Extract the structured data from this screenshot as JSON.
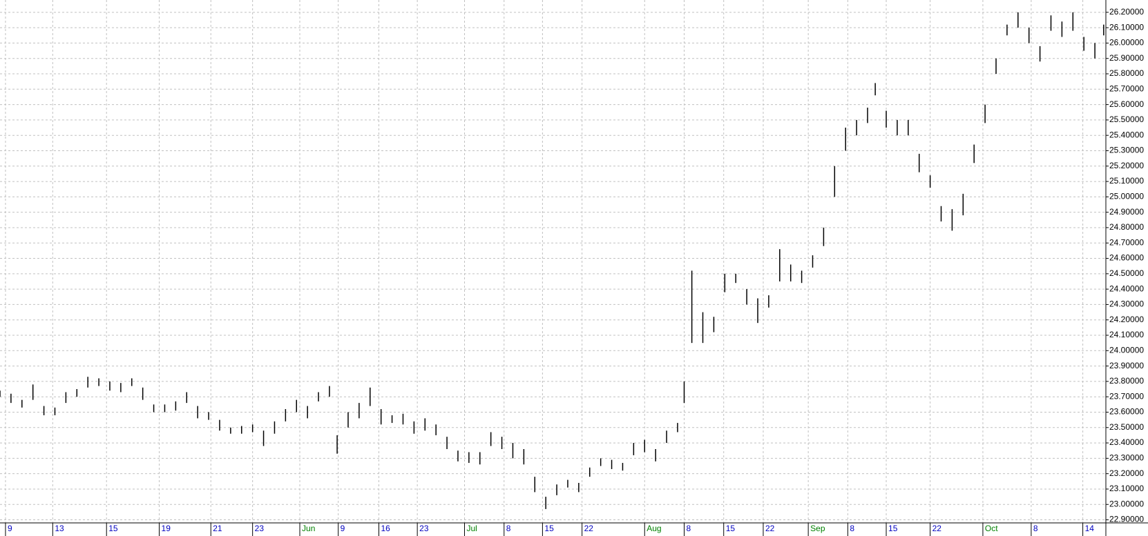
{
  "chart_data": {
    "type": "hl",
    "x": [
      0,
      1,
      2,
      3,
      4,
      5,
      6,
      7,
      8,
      9,
      10,
      11,
      12,
      13,
      14,
      15,
      16,
      17,
      18,
      19,
      20,
      21,
      22,
      23,
      24,
      25,
      26,
      27,
      28,
      29,
      30,
      30.7,
      31.7,
      32.7,
      33.7,
      34.7,
      35.7,
      36.7,
      37.7,
      38.7,
      39.7,
      40.7,
      41.7,
      42.7,
      43.7,
      44.7,
      45.7,
      46.7,
      47.7,
      48.7,
      49.7,
      50.7,
      51.7,
      52.7,
      53.7,
      54.7,
      55.7,
      56.7,
      57.7,
      58.7,
      59.7,
      60.7,
      61.7,
      62.3,
      63,
      64,
      65,
      66,
      67,
      68,
      69,
      70,
      71,
      72,
      73,
      74,
      75,
      76,
      77,
      78,
      79,
      79.7,
      80.7,
      81.7,
      82.7,
      83.7,
      84.7,
      85.7,
      86.7,
      87.7,
      88.7,
      89.7,
      90.7,
      91.7,
      92.7,
      93.7,
      94.7,
      95.7,
      96.7,
      97.7,
      98.7,
      99.7,
      100.5
    ],
    "low": [
      23.7,
      23.66,
      23.63,
      23.68,
      23.58,
      23.58,
      23.66,
      23.7,
      23.76,
      23.77,
      23.74,
      23.73,
      23.77,
      23.68,
      23.6,
      23.6,
      23.61,
      23.66,
      23.56,
      23.55,
      23.48,
      23.46,
      23.46,
      23.47,
      23.38,
      23.46,
      23.54,
      23.6,
      23.56,
      23.67,
      23.7,
      23.33,
      23.5,
      23.56,
      23.64,
      23.52,
      23.53,
      23.52,
      23.46,
      23.48,
      23.45,
      23.36,
      23.28,
      23.27,
      23.26,
      23.38,
      23.36,
      23.3,
      23.26,
      23.08,
      22.97,
      23.06,
      23.11,
      23.08,
      23.18,
      23.25,
      23.23,
      23.22,
      23.32,
      23.34,
      23.28,
      23.4,
      23.47,
      23.66,
      24.05,
      24.05,
      24.12,
      24.38,
      24.44,
      24.3,
      24.18,
      24.28,
      24.45,
      24.45,
      24.44,
      24.54,
      24.68,
      25.0,
      25.3,
      25.4,
      25.48,
      25.66,
      25.45,
      25.4,
      25.4,
      25.16,
      25.06,
      24.84,
      24.78,
      24.88,
      25.22,
      25.48,
      25.8,
      26.05,
      26.1,
      26.0,
      25.88,
      26.08,
      26.04,
      26.08,
      25.95,
      25.9,
      26.05
    ],
    "high": [
      23.74,
      23.72,
      23.68,
      23.78,
      23.64,
      23.63,
      23.73,
      23.75,
      23.83,
      23.82,
      23.8,
      23.79,
      23.82,
      23.76,
      23.65,
      23.65,
      23.67,
      23.73,
      23.64,
      23.6,
      23.55,
      23.5,
      23.51,
      23.52,
      23.48,
      23.54,
      23.62,
      23.68,
      23.64,
      23.73,
      23.77,
      23.45,
      23.6,
      23.66,
      23.76,
      23.62,
      23.58,
      23.59,
      23.54,
      23.56,
      23.52,
      23.44,
      23.35,
      23.34,
      23.34,
      23.47,
      23.44,
      23.4,
      23.36,
      23.18,
      23.05,
      23.13,
      23.16,
      23.14,
      23.24,
      23.3,
      23.29,
      23.27,
      23.4,
      23.42,
      23.36,
      23.48,
      23.53,
      23.8,
      24.52,
      24.25,
      24.22,
      24.5,
      24.5,
      24.4,
      24.34,
      24.36,
      24.66,
      24.56,
      24.52,
      24.62,
      24.8,
      25.2,
      25.45,
      25.5,
      25.58,
      25.74,
      25.56,
      25.5,
      25.5,
      25.28,
      25.14,
      24.94,
      24.92,
      25.02,
      25.34,
      25.6,
      25.9,
      26.12,
      26.2,
      26.1,
      25.98,
      26.18,
      26.14,
      26.2,
      26.04,
      26.0,
      26.12
    ],
    "color": "#000000",
    "xlim": [
      0,
      100.7
    ],
    "xticks": [
      {
        "value": 0.5,
        "label": "9"
      },
      {
        "value": 4.8,
        "label": "13"
      },
      {
        "value": 9.7,
        "label": "15"
      },
      {
        "value": 14.5,
        "label": "19"
      },
      {
        "value": 19.2,
        "label": "21"
      },
      {
        "value": 23,
        "label": "23"
      },
      {
        "value": 27.3,
        "label": "Jun"
      },
      {
        "value": 30.8,
        "label": "9"
      },
      {
        "value": 34.5,
        "label": "16"
      },
      {
        "value": 38,
        "label": "23"
      },
      {
        "value": 42.3,
        "label": "Jul"
      },
      {
        "value": 45.9,
        "label": "8"
      },
      {
        "value": 49.4,
        "label": "15"
      },
      {
        "value": 53,
        "label": "22"
      },
      {
        "value": 58.7,
        "label": "Aug"
      },
      {
        "value": 62.3,
        "label": "8"
      },
      {
        "value": 65.9,
        "label": "15"
      },
      {
        "value": 69.5,
        "label": "22"
      },
      {
        "value": 73.6,
        "label": "Sep"
      },
      {
        "value": 77.2,
        "label": "8"
      },
      {
        "value": 80.7,
        "label": "15"
      },
      {
        "value": 84.7,
        "label": "22"
      },
      {
        "value": 89.5,
        "label": "Oct"
      },
      {
        "value": 93.9,
        "label": "8"
      },
      {
        "value": 98.6,
        "label": "14"
      }
    ],
    "ylim": [
      22.88,
      26.28
    ],
    "yticks": [
      {
        "value": 22.9,
        "label": "22.90000"
      },
      {
        "value": 23.0,
        "label": "23.00000"
      },
      {
        "value": 23.1,
        "label": "23.10000"
      },
      {
        "value": 23.2,
        "label": "23.20000"
      },
      {
        "value": 23.3,
        "label": "23.30000"
      },
      {
        "value": 23.4,
        "label": "23.40000"
      },
      {
        "value": 23.5,
        "label": "23.50000"
      },
      {
        "value": 23.6,
        "label": "23.60000"
      },
      {
        "value": 23.7,
        "label": "23.70000"
      },
      {
        "value": 23.8,
        "label": "23.80000"
      },
      {
        "value": 23.9,
        "label": "23.90000"
      },
      {
        "value": 24.0,
        "label": "24.00000"
      },
      {
        "value": 24.1,
        "label": "24.10000"
      },
      {
        "value": 24.2,
        "label": "24.20000"
      },
      {
        "value": 24.3,
        "label": "24.30000"
      },
      {
        "value": 24.4,
        "label": "24.40000"
      },
      {
        "value": 24.5,
        "label": "24.50000"
      },
      {
        "value": 24.6,
        "label": "24.60000"
      },
      {
        "value": 24.7,
        "label": "24.70000"
      },
      {
        "value": 24.8,
        "label": "24.80000"
      },
      {
        "value": 24.9,
        "label": "24.90000"
      },
      {
        "value": 25.0,
        "label": "25.00000"
      },
      {
        "value": 25.1,
        "label": "25.10000"
      },
      {
        "value": 25.2,
        "label": "25.20000"
      },
      {
        "value": 25.3,
        "label": "25.30000"
      },
      {
        "value": 25.4,
        "label": "25.40000"
      },
      {
        "value": 25.5,
        "label": "25.50000"
      },
      {
        "value": 25.6,
        "label": "25.60000"
      },
      {
        "value": 25.7,
        "label": "25.70000"
      },
      {
        "value": 25.8,
        "label": "25.80000"
      },
      {
        "value": 25.9,
        "label": "25.90000"
      },
      {
        "value": 26.0,
        "label": "26.00000"
      },
      {
        "value": 26.1,
        "label": "26.10000"
      },
      {
        "value": 26.2,
        "label": "26.20000"
      }
    ],
    "grid": true
  }
}
